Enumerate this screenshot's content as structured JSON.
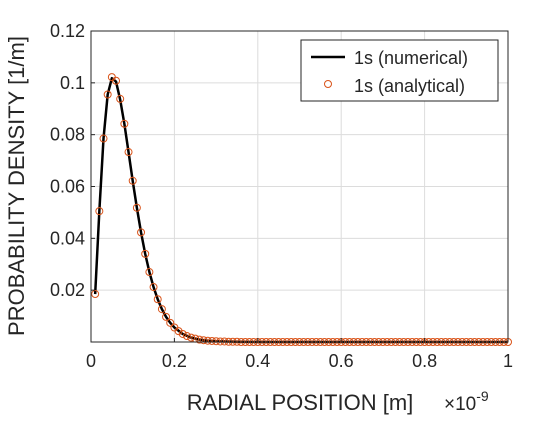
{
  "chart_data": {
    "type": "line",
    "xlabel": "RADIAL POSITION [m]",
    "ylabel": "PROBABILITY DENSITY [1/m]",
    "x_exponent_label": "×10",
    "x_exponent_power": "-9",
    "xlim": [
      0,
      1
    ],
    "ylim": [
      0,
      0.12
    ],
    "xticks": [
      0,
      0.2,
      0.4,
      0.6,
      0.8,
      1
    ],
    "xtick_labels": [
      "0",
      "0.2",
      "0.4",
      "0.6",
      "0.8",
      "1"
    ],
    "yticks": [
      0.02,
      0.04,
      0.06,
      0.08,
      0.1,
      0.12
    ],
    "ytick_labels": [
      "0.02",
      "0.04",
      "0.06",
      "0.08",
      "0.1",
      "0.12"
    ],
    "grid": true,
    "legend_position": "top-right",
    "series": [
      {
        "name": "1s (numerical)",
        "style": "solid-line",
        "color": "#000000",
        "x": [
          0.01,
          0.02,
          0.03,
          0.04,
          0.05,
          0.06,
          0.07,
          0.08,
          0.09,
          0.1,
          0.11,
          0.12,
          0.13,
          0.14,
          0.15,
          0.16,
          0.17,
          0.18,
          0.19,
          0.2,
          0.22,
          0.24,
          0.26,
          0.28,
          0.3,
          0.35,
          0.4,
          0.5,
          0.6,
          0.7,
          0.8,
          0.9,
          1.0
        ],
        "y": [
          0.0185,
          0.0505,
          0.0785,
          0.0955,
          0.1018,
          0.1005,
          0.0935,
          0.0842,
          0.0733,
          0.0622,
          0.0518,
          0.0423,
          0.034,
          0.027,
          0.0212,
          0.0165,
          0.0127,
          0.0097,
          0.0074,
          0.0056,
          0.0031,
          0.0017,
          0.0009,
          0.0005,
          0.0003,
          0.0001,
          0.0,
          0.0,
          0.0,
          0.0,
          0.0,
          0.0,
          0.0
        ]
      },
      {
        "name": "1s (analytical)",
        "style": "circle-markers",
        "color": "#d95319",
        "x": [
          0.01,
          0.02,
          0.03,
          0.04,
          0.05,
          0.06,
          0.07,
          0.08,
          0.09,
          0.1,
          0.11,
          0.12,
          0.13,
          0.14,
          0.15,
          0.16,
          0.17,
          0.18,
          0.19,
          0.2,
          0.21,
          0.22,
          0.23,
          0.24,
          0.25,
          0.26,
          0.27,
          0.28,
          0.29,
          0.3,
          0.31,
          0.32,
          0.33,
          0.34,
          0.35,
          0.36,
          0.37,
          0.38,
          0.39,
          0.4,
          0.41,
          0.42,
          0.43,
          0.44,
          0.45,
          0.46,
          0.47,
          0.48,
          0.49,
          0.5,
          0.51,
          0.52,
          0.53,
          0.54,
          0.55,
          0.56,
          0.57,
          0.58,
          0.59,
          0.6,
          0.61,
          0.62,
          0.63,
          0.64,
          0.65,
          0.66,
          0.67,
          0.68,
          0.69,
          0.7,
          0.71,
          0.72,
          0.73,
          0.74,
          0.75,
          0.76,
          0.77,
          0.78,
          0.79,
          0.8,
          0.81,
          0.82,
          0.83,
          0.84,
          0.85,
          0.86,
          0.87,
          0.88,
          0.89,
          0.9,
          0.91,
          0.92,
          0.93,
          0.94,
          0.95,
          0.96,
          0.97,
          0.98,
          0.99,
          1.0
        ],
        "y": [
          0.0185,
          0.0505,
          0.0785,
          0.0955,
          0.1022,
          0.1008,
          0.0938,
          0.0842,
          0.0733,
          0.0622,
          0.0518,
          0.0423,
          0.034,
          0.027,
          0.0212,
          0.0165,
          0.0127,
          0.0097,
          0.0074,
          0.0056,
          0.0042,
          0.0031,
          0.0023,
          0.0017,
          0.0013,
          0.0009,
          0.0007,
          0.0005,
          0.0004,
          0.0003,
          0.0002,
          0.0002,
          0.0001,
          0.0001,
          0.0001,
          0.0,
          0.0,
          0.0,
          0.0,
          0.0,
          0.0,
          0.0,
          0.0,
          0.0,
          0.0,
          0.0,
          0.0,
          0.0,
          0.0,
          0.0,
          0.0,
          0.0,
          0.0,
          0.0,
          0.0,
          0.0,
          0.0,
          0.0,
          0.0,
          0.0,
          0.0,
          0.0,
          0.0,
          0.0,
          0.0,
          0.0,
          0.0,
          0.0,
          0.0,
          0.0,
          0.0,
          0.0,
          0.0,
          0.0,
          0.0,
          0.0,
          0.0,
          0.0,
          0.0,
          0.0,
          0.0,
          0.0,
          0.0,
          0.0,
          0.0,
          0.0,
          0.0,
          0.0,
          0.0,
          0.0,
          0.0,
          0.0,
          0.0,
          0.0,
          0.0,
          0.0,
          0.0,
          0.0,
          0.0,
          0.0
        ]
      }
    ]
  }
}
